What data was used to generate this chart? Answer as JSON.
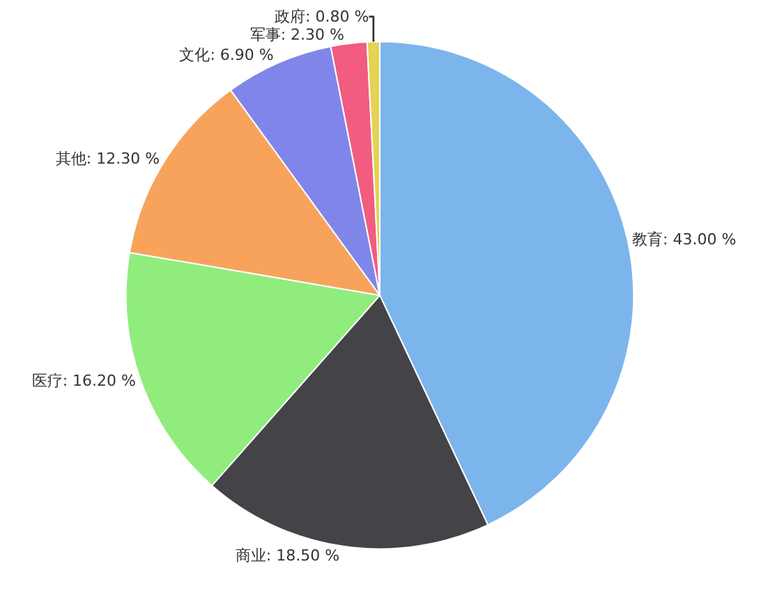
{
  "chart_data": {
    "type": "pie",
    "categories": [
      "教育",
      "商业",
      "医疗",
      "其他",
      "文化",
      "军事",
      "政府"
    ],
    "values": [
      43.0,
      18.5,
      16.2,
      12.3,
      6.9,
      2.3,
      0.8
    ],
    "value_labels": [
      "43.00 %",
      "18.50 %",
      "16.20 %",
      "12.30 %",
      "6.90 %",
      "2.30 %",
      "0.80 %"
    ],
    "colors": [
      "#7cb5ec",
      "#434348",
      "#90ed7d",
      "#f7a35c",
      "#8085e9",
      "#f15c80",
      "#e4d354"
    ],
    "legend": false
  }
}
